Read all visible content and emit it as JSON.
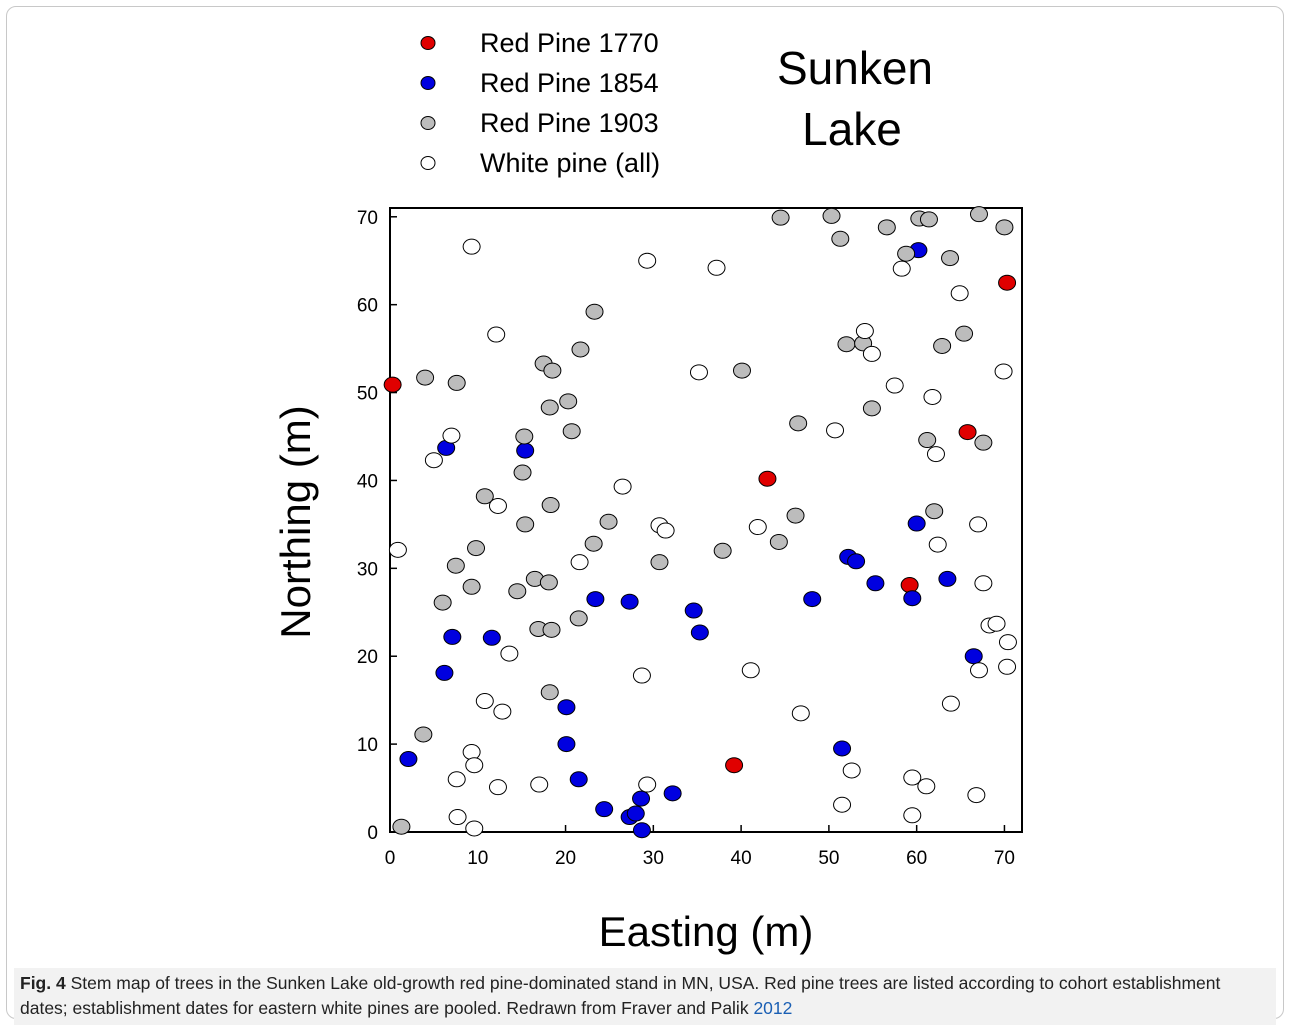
{
  "figure": {
    "caption_label": "Fig. 4",
    "caption_text": "Stem map of trees in the Sunken Lake old-growth red pine-dominated stand in MN, USA. Red pine trees are listed according to cohort establishment dates; establishment dates for eastern white pines are pooled. Redrawn from Fraver and Palik",
    "caption_link": "2012"
  },
  "chart_data": {
    "type": "scatter",
    "title_lines": [
      "Sunken",
      "Lake"
    ],
    "xlabel": "Easting (m)",
    "ylabel": "Northing (m)",
    "xlim": [
      0,
      72
    ],
    "ylim": [
      0,
      71
    ],
    "xticks": [
      0,
      10,
      20,
      30,
      40,
      50,
      60,
      70
    ],
    "yticks": [
      0,
      10,
      20,
      30,
      40,
      50,
      60,
      70
    ],
    "grid": false,
    "legend_position": "top-left",
    "series": [
      {
        "name": "Red Pine 1770",
        "color": "#e00000",
        "points": [
          [
            0.3,
            50.9
          ],
          [
            43,
            40.2
          ],
          [
            70.3,
            62.5
          ],
          [
            65.8,
            45.5
          ],
          [
            59.2,
            28.1
          ],
          [
            39.2,
            7.6
          ]
        ]
      },
      {
        "name": "Red Pine 1854",
        "color": "#0000e0",
        "points": [
          [
            6.4,
            43.7
          ],
          [
            15.4,
            43.4
          ],
          [
            6.2,
            18.1
          ],
          [
            7.1,
            22.2
          ],
          [
            11.6,
            22.1
          ],
          [
            2.1,
            8.3
          ],
          [
            23.4,
            26.5
          ],
          [
            27.3,
            26.2
          ],
          [
            20.1,
            14.2
          ],
          [
            20.1,
            10
          ],
          [
            21.5,
            6
          ],
          [
            24.4,
            2.6
          ],
          [
            27.3,
            1.7
          ],
          [
            28,
            2.1
          ],
          [
            28.6,
            3.8
          ],
          [
            28.7,
            0.2
          ],
          [
            32.2,
            4.4
          ],
          [
            34.6,
            25.2
          ],
          [
            35.3,
            22.7
          ],
          [
            48.1,
            26.5
          ],
          [
            52.2,
            31.3
          ],
          [
            53.1,
            30.8
          ],
          [
            55.3,
            28.3
          ],
          [
            59.5,
            26.6
          ],
          [
            60,
            35.1
          ],
          [
            60.2,
            66.2
          ],
          [
            63.5,
            28.8
          ],
          [
            66.5,
            20
          ],
          [
            51.5,
            9.5
          ]
        ]
      },
      {
        "name": "Red Pine 1903",
        "color": "#bcbcbc",
        "points": [
          [
            4,
            51.7
          ],
          [
            7.6,
            51.1
          ],
          [
            17.5,
            53.3
          ],
          [
            18.5,
            52.5
          ],
          [
            21.7,
            54.9
          ],
          [
            23.3,
            59.2
          ],
          [
            18.2,
            48.3
          ],
          [
            20.3,
            49
          ],
          [
            20.7,
            45.6
          ],
          [
            15.3,
            45
          ],
          [
            15.1,
            40.9
          ],
          [
            10.8,
            38.2
          ],
          [
            15.4,
            35
          ],
          [
            18.3,
            37.2
          ],
          [
            24.9,
            35.3
          ],
          [
            23.2,
            32.8
          ],
          [
            9.8,
            32.3
          ],
          [
            7.5,
            30.3
          ],
          [
            6,
            26.1
          ],
          [
            9.3,
            27.9
          ],
          [
            14.5,
            27.4
          ],
          [
            16.5,
            28.8
          ],
          [
            18.1,
            28.4
          ],
          [
            16.9,
            23.1
          ],
          [
            18.4,
            23
          ],
          [
            21.5,
            24.3
          ],
          [
            18.2,
            15.9
          ],
          [
            3.8,
            11.1
          ],
          [
            1.3,
            0.6
          ],
          [
            30.7,
            30.7
          ],
          [
            37.9,
            32
          ],
          [
            40.1,
            52.5
          ],
          [
            44.3,
            33
          ],
          [
            46.2,
            36
          ],
          [
            46.5,
            46.5
          ],
          [
            44.5,
            69.9
          ],
          [
            50.3,
            70.1
          ],
          [
            51.3,
            67.5
          ],
          [
            52,
            55.5
          ],
          [
            53.9,
            55.6
          ],
          [
            54.9,
            48.2
          ],
          [
            56.6,
            68.8
          ],
          [
            58.8,
            65.8
          ],
          [
            60.3,
            69.8
          ],
          [
            61.4,
            69.7
          ],
          [
            61.2,
            44.6
          ],
          [
            62,
            36.5
          ],
          [
            62.9,
            55.3
          ],
          [
            63.8,
            65.3
          ],
          [
            65.4,
            56.7
          ],
          [
            67.6,
            44.3
          ],
          [
            67.1,
            70.3
          ],
          [
            70,
            68.8
          ]
        ]
      },
      {
        "name": "White pine (all)",
        "color": "#ffffff",
        "points": [
          [
            9.3,
            66.6
          ],
          [
            12.1,
            56.6
          ],
          [
            7,
            45.1
          ],
          [
            5,
            42.3
          ],
          [
            12.3,
            37.1
          ],
          [
            0.9,
            32.1
          ],
          [
            13.6,
            20.3
          ],
          [
            10.8,
            14.9
          ],
          [
            12.8,
            13.7
          ],
          [
            9.3,
            9.1
          ],
          [
            9.6,
            7.6
          ],
          [
            7.6,
            6
          ],
          [
            12.3,
            5.1
          ],
          [
            17,
            5.4
          ],
          [
            7.7,
            1.7
          ],
          [
            9.6,
            0.4
          ],
          [
            21.6,
            30.7
          ],
          [
            26.5,
            39.3
          ],
          [
            30.7,
            34.9
          ],
          [
            31.4,
            34.3
          ],
          [
            28.7,
            17.8
          ],
          [
            29.3,
            5.4
          ],
          [
            29.3,
            65
          ],
          [
            35.2,
            52.3
          ],
          [
            37.2,
            64.2
          ],
          [
            41.1,
            18.4
          ],
          [
            41.9,
            34.7
          ],
          [
            46.8,
            13.5
          ],
          [
            50.7,
            45.7
          ],
          [
            51.5,
            3.1
          ],
          [
            52.6,
            7
          ],
          [
            54.1,
            57
          ],
          [
            54.9,
            54.4
          ],
          [
            57.5,
            50.8
          ],
          [
            58.3,
            64.1
          ],
          [
            59.5,
            6.2
          ],
          [
            59.5,
            1.9
          ],
          [
            61.1,
            5.2
          ],
          [
            61.8,
            49.5
          ],
          [
            62.2,
            43
          ],
          [
            62.4,
            32.7
          ],
          [
            63.9,
            14.6
          ],
          [
            64.9,
            61.3
          ],
          [
            66.8,
            4.2
          ],
          [
            67,
            35
          ],
          [
            67.1,
            18.4
          ],
          [
            67.6,
            28.3
          ],
          [
            68.3,
            23.5
          ],
          [
            69.1,
            23.7
          ],
          [
            69.9,
            52.4
          ],
          [
            70.4,
            21.6
          ],
          [
            70.3,
            18.8
          ]
        ]
      }
    ]
  }
}
